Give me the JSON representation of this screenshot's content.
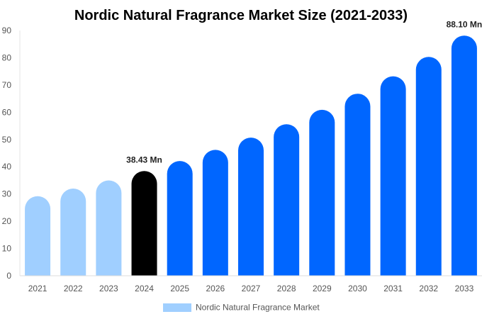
{
  "chart_data": {
    "type": "bar",
    "title": "Nordic Natural Fragrance Market Size (2021-2033)",
    "xlabel": "",
    "ylabel": "",
    "ylim": [
      0,
      90
    ],
    "yticks": [
      0,
      10,
      20,
      30,
      40,
      50,
      60,
      70,
      80,
      90
    ],
    "categories": [
      "2021",
      "2022",
      "2023",
      "2024",
      "2025",
      "2026",
      "2027",
      "2028",
      "2029",
      "2030",
      "2031",
      "2032",
      "2033"
    ],
    "series": [
      {
        "name": "Nordic Natural Fragrance Market",
        "values": [
          29.2,
          32.0,
          35.0,
          38.43,
          42.1,
          46.2,
          50.7,
          55.6,
          60.9,
          66.8,
          73.2,
          80.3,
          88.1
        ]
      }
    ],
    "bar_colors": {
      "historical": "#a0cfff",
      "base_year": "#000000",
      "forecast": "#0066ff"
    },
    "base_year_index": 3,
    "data_labels": [
      {
        "index": 3,
        "text": "38.43 Mn"
      },
      {
        "index": 12,
        "text": "88.10 Mn"
      }
    ],
    "legend": {
      "label": "Nordic Natural Fragrance Market",
      "color": "#a0cfff",
      "placement": "bottom"
    },
    "grid": false
  }
}
